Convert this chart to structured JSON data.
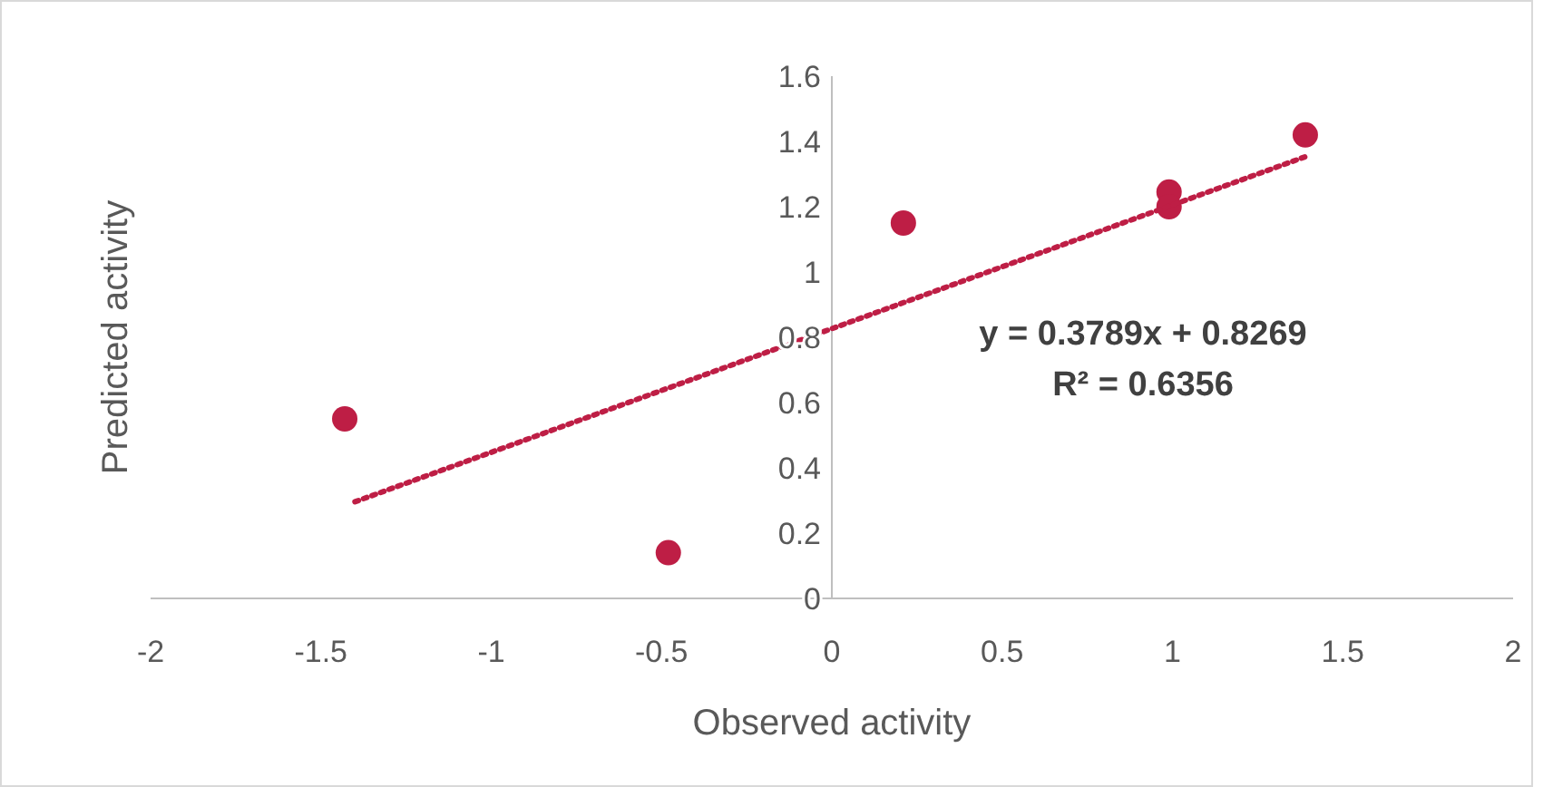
{
  "chart_data": {
    "type": "scatter",
    "xlabel": "Observed activity",
    "ylabel": "Predicted activity",
    "xlim": [
      -2,
      2
    ],
    "xticks": [
      -2,
      -1.5,
      -1,
      -0.5,
      0,
      0.5,
      1,
      1.5,
      2
    ],
    "ylim": [
      0,
      1.6
    ],
    "yticks": [
      0,
      0.2,
      0.4,
      0.6,
      0.8,
      1,
      1.2,
      1.4,
      1.6
    ],
    "grid": false,
    "series": [
      {
        "marker": "circle",
        "color": "#be1e45",
        "x": [
          -1.43,
          -0.48,
          0.21,
          0.99,
          0.99,
          1.39
        ],
        "values": [
          0.55,
          0.14,
          1.15,
          1.245,
          1.2,
          1.42
        ]
      },
      {
        "type": "line",
        "color": "#be1e45",
        "line_style": "dotted",
        "x": [
          -1.4,
          1.4
        ],
        "values": [
          0.296,
          1.357
        ]
      }
    ],
    "annotations": [
      "y = 0.3789x + 0.8269",
      "R² = 0.6356"
    ]
  }
}
